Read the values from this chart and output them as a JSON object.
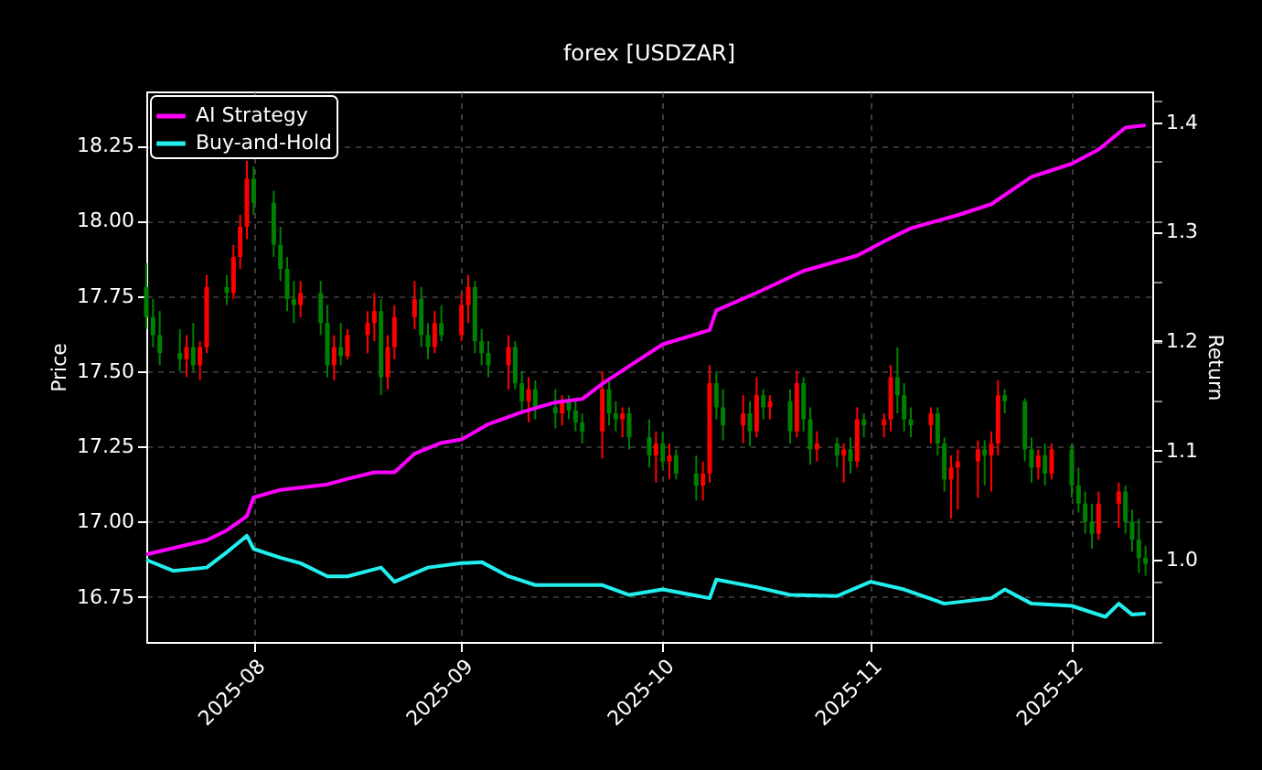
{
  "chart_data": {
    "type": "candlestick",
    "title": "forex [USDZAR]",
    "ylabel": "Price",
    "y2label": "Return",
    "x": [
      "2025-07-16",
      "2025-07-17",
      "2025-07-18",
      "2025-07-21",
      "2025-07-22",
      "2025-07-23",
      "2025-07-24",
      "2025-07-25",
      "2025-07-28",
      "2025-07-29",
      "2025-07-30",
      "2025-07-31",
      "2025-08-01",
      "2025-08-04",
      "2025-08-05",
      "2025-08-06",
      "2025-08-07",
      "2025-08-08",
      "2025-08-11",
      "2025-08-12",
      "2025-08-13",
      "2025-08-14",
      "2025-08-15",
      "2025-08-18",
      "2025-08-19",
      "2025-08-20",
      "2025-08-21",
      "2025-08-22",
      "2025-08-25",
      "2025-08-26",
      "2025-08-27",
      "2025-08-28",
      "2025-08-29",
      "2025-09-01",
      "2025-09-02",
      "2025-09-03",
      "2025-09-04",
      "2025-09-05",
      "2025-09-08",
      "2025-09-09",
      "2025-09-10",
      "2025-09-11",
      "2025-09-12",
      "2025-09-15",
      "2025-09-16",
      "2025-09-17",
      "2025-09-18",
      "2025-09-19",
      "2025-09-22",
      "2025-09-23",
      "2025-09-24",
      "2025-09-25",
      "2025-09-26",
      "2025-09-29",
      "2025-09-30",
      "2025-10-01",
      "2025-10-02",
      "2025-10-03",
      "2025-10-06",
      "2025-10-07",
      "2025-10-08",
      "2025-10-09",
      "2025-10-10",
      "2025-10-13",
      "2025-10-14",
      "2025-10-15",
      "2025-10-16",
      "2025-10-17",
      "2025-10-20",
      "2025-10-21",
      "2025-10-22",
      "2025-10-23",
      "2025-10-24",
      "2025-10-27",
      "2025-10-28",
      "2025-10-29",
      "2025-10-30",
      "2025-10-31",
      "2025-11-03",
      "2025-11-04",
      "2025-11-05",
      "2025-11-06",
      "2025-11-07",
      "2025-11-10",
      "2025-11-11",
      "2025-11-12",
      "2025-11-13",
      "2025-11-14",
      "2025-11-17",
      "2025-11-18",
      "2025-11-19",
      "2025-11-20",
      "2025-11-21",
      "2025-11-24",
      "2025-11-25",
      "2025-11-26",
      "2025-11-27",
      "2025-11-28",
      "2025-12-01",
      "2025-12-02",
      "2025-12-03",
      "2025-12-04",
      "2025-12-05",
      "2025-12-08",
      "2025-12-09",
      "2025-12-10",
      "2025-12-11",
      "2025-12-12"
    ],
    "ohlc": [
      [
        17.78,
        17.86,
        17.64,
        17.68
      ],
      [
        17.68,
        17.74,
        17.58,
        17.62
      ],
      [
        17.62,
        17.7,
        17.52,
        17.56
      ],
      [
        17.56,
        17.64,
        17.5,
        17.54
      ],
      [
        17.54,
        17.62,
        17.48,
        17.58
      ],
      [
        17.58,
        17.66,
        17.5,
        17.52
      ],
      [
        17.52,
        17.6,
        17.47,
        17.58
      ],
      [
        17.58,
        17.82,
        17.56,
        17.78
      ],
      [
        17.78,
        17.82,
        17.72,
        17.76
      ],
      [
        17.76,
        17.92,
        17.74,
        17.88
      ],
      [
        17.88,
        18.02,
        17.84,
        17.98
      ],
      [
        17.98,
        18.2,
        17.94,
        18.14
      ],
      [
        18.14,
        18.18,
        18.02,
        18.06
      ],
      [
        18.06,
        18.1,
        17.88,
        17.92
      ],
      [
        17.92,
        17.98,
        17.8,
        17.84
      ],
      [
        17.84,
        17.88,
        17.7,
        17.74
      ],
      [
        17.74,
        17.8,
        17.66,
        17.72
      ],
      [
        17.72,
        17.8,
        17.68,
        17.76
      ],
      [
        17.76,
        17.8,
        17.62,
        17.66
      ],
      [
        17.66,
        17.72,
        17.48,
        17.52
      ],
      [
        17.52,
        17.62,
        17.47,
        17.58
      ],
      [
        17.58,
        17.66,
        17.52,
        17.55
      ],
      [
        17.55,
        17.64,
        17.54,
        17.62
      ],
      [
        17.62,
        17.7,
        17.56,
        17.66
      ],
      [
        17.66,
        17.76,
        17.6,
        17.7
      ],
      [
        17.7,
        17.74,
        17.42,
        17.48
      ],
      [
        17.48,
        17.62,
        17.44,
        17.58
      ],
      [
        17.58,
        17.72,
        17.54,
        17.68
      ],
      [
        17.68,
        17.8,
        17.64,
        17.74
      ],
      [
        17.74,
        17.78,
        17.58,
        17.62
      ],
      [
        17.62,
        17.66,
        17.54,
        17.58
      ],
      [
        17.58,
        17.7,
        17.56,
        17.66
      ],
      [
        17.66,
        17.72,
        17.6,
        17.62
      ],
      [
        17.62,
        17.76,
        17.6,
        17.72
      ],
      [
        17.72,
        17.82,
        17.66,
        17.78
      ],
      [
        17.78,
        17.8,
        17.56,
        17.6
      ],
      [
        17.6,
        17.64,
        17.52,
        17.56
      ],
      [
        17.56,
        17.6,
        17.48,
        17.52
      ],
      [
        17.52,
        17.62,
        17.44,
        17.58
      ],
      [
        17.58,
        17.6,
        17.44,
        17.46
      ],
      [
        17.46,
        17.5,
        17.36,
        17.4
      ],
      [
        17.4,
        17.48,
        17.33,
        17.44
      ],
      [
        17.44,
        17.47,
        17.34,
        17.38
      ],
      [
        17.38,
        17.44,
        17.31,
        17.36
      ],
      [
        17.36,
        17.42,
        17.32,
        17.4
      ],
      [
        17.4,
        17.42,
        17.34,
        17.37
      ],
      [
        17.37,
        17.4,
        17.3,
        17.33
      ],
      [
        17.33,
        17.36,
        17.26,
        17.3
      ],
      [
        17.3,
        17.5,
        17.21,
        17.44
      ],
      [
        17.44,
        17.48,
        17.32,
        17.36
      ],
      [
        17.36,
        17.4,
        17.3,
        17.34
      ],
      [
        17.34,
        17.38,
        17.28,
        17.36
      ],
      [
        17.36,
        17.38,
        17.24,
        17.28
      ],
      [
        17.28,
        17.34,
        17.18,
        17.22
      ],
      [
        17.22,
        17.3,
        17.13,
        17.26
      ],
      [
        17.26,
        17.3,
        17.18,
        17.2
      ],
      [
        17.2,
        17.26,
        17.14,
        17.22
      ],
      [
        17.22,
        17.24,
        17.14,
        17.16
      ],
      [
        17.16,
        17.22,
        17.07,
        17.12
      ],
      [
        17.12,
        17.2,
        17.07,
        17.16
      ],
      [
        17.16,
        17.52,
        17.13,
        17.46
      ],
      [
        17.46,
        17.5,
        17.34,
        17.38
      ],
      [
        17.38,
        17.44,
        17.27,
        17.32
      ],
      [
        17.32,
        17.42,
        17.26,
        17.36
      ],
      [
        17.36,
        17.4,
        17.25,
        17.3
      ],
      [
        17.3,
        17.48,
        17.28,
        17.42
      ],
      [
        17.42,
        17.44,
        17.34,
        17.38
      ],
      [
        17.38,
        17.42,
        17.34,
        17.4
      ],
      [
        17.4,
        17.44,
        17.26,
        17.3
      ],
      [
        17.3,
        17.5,
        17.28,
        17.46
      ],
      [
        17.46,
        17.48,
        17.3,
        17.34
      ],
      [
        17.34,
        17.38,
        17.19,
        17.24
      ],
      [
        17.24,
        17.3,
        17.2,
        17.26
      ],
      [
        17.26,
        17.28,
        17.18,
        17.22
      ],
      [
        17.22,
        17.26,
        17.13,
        17.24
      ],
      [
        17.24,
        17.28,
        17.16,
        17.2
      ],
      [
        17.2,
        17.38,
        17.18,
        17.34
      ],
      [
        17.34,
        17.36,
        17.28,
        17.32
      ],
      [
        17.32,
        17.36,
        17.28,
        17.34
      ],
      [
        17.34,
        17.52,
        17.3,
        17.48
      ],
      [
        17.48,
        17.58,
        17.36,
        17.42
      ],
      [
        17.42,
        17.46,
        17.3,
        17.34
      ],
      [
        17.34,
        17.38,
        17.28,
        17.32
      ],
      [
        17.32,
        17.38,
        17.26,
        17.36
      ],
      [
        17.36,
        17.38,
        17.22,
        17.26
      ],
      [
        17.26,
        17.28,
        17.1,
        17.14
      ],
      [
        17.14,
        17.22,
        17.01,
        17.18
      ],
      [
        17.18,
        17.24,
        17.04,
        17.2
      ],
      [
        17.2,
        17.27,
        17.08,
        17.24
      ],
      [
        17.24,
        17.27,
        17.12,
        17.22
      ],
      [
        17.22,
        17.3,
        17.1,
        17.26
      ],
      [
        17.26,
        17.47,
        17.22,
        17.42
      ],
      [
        17.42,
        17.44,
        17.36,
        17.4
      ],
      [
        17.4,
        17.41,
        17.2,
        17.24
      ],
      [
        17.24,
        17.28,
        17.13,
        17.18
      ],
      [
        17.18,
        17.24,
        17.14,
        17.22
      ],
      [
        17.22,
        17.26,
        17.12,
        17.16
      ],
      [
        17.16,
        17.26,
        17.14,
        17.24
      ],
      [
        17.24,
        17.26,
        17.08,
        17.12
      ],
      [
        17.12,
        17.18,
        17.03,
        17.06
      ],
      [
        17.06,
        17.1,
        16.96,
        17.0
      ],
      [
        17.0,
        17.06,
        16.91,
        16.96
      ],
      [
        16.96,
        17.1,
        16.94,
        17.06
      ],
      [
        17.06,
        17.13,
        16.98,
        17.1
      ],
      [
        17.1,
        17.12,
        16.96,
        17.0
      ],
      [
        17.0,
        17.04,
        16.9,
        16.94
      ],
      [
        16.94,
        17.01,
        16.83,
        16.88
      ],
      [
        16.88,
        16.92,
        16.82,
        16.86
      ]
    ],
    "colors": [
      "#008000",
      "#008000",
      "#008000",
      "#008000",
      "#ff0000",
      "#008000",
      "#ff0000",
      "#ff0000",
      "#008000",
      "#ff0000",
      "#ff0000",
      "#ff0000",
      "#008000",
      "#008000",
      "#008000",
      "#008000",
      "#008000",
      "#ff0000",
      "#008000",
      "#008000",
      "#ff0000",
      "#008000",
      "#ff0000",
      "#ff0000",
      "#ff0000",
      "#008000",
      "#ff0000",
      "#ff0000",
      "#ff0000",
      "#008000",
      "#008000",
      "#ff0000",
      "#008000",
      "#ff0000",
      "#ff0000",
      "#008000",
      "#008000",
      "#008000",
      "#ff0000",
      "#008000",
      "#008000",
      "#ff0000",
      "#008000",
      "#008000",
      "#ff0000",
      "#008000",
      "#008000",
      "#008000",
      "#ff0000",
      "#008000",
      "#008000",
      "#ff0000",
      "#008000",
      "#008000",
      "#ff0000",
      "#008000",
      "#ff0000",
      "#008000",
      "#008000",
      "#ff0000",
      "#ff0000",
      "#008000",
      "#008000",
      "#ff0000",
      "#008000",
      "#ff0000",
      "#008000",
      "#ff0000",
      "#008000",
      "#ff0000",
      "#008000",
      "#008000",
      "#ff0000",
      "#008000",
      "#ff0000",
      "#008000",
      "#ff0000",
      "#008000",
      "#ff0000",
      "#ff0000",
      "#008000",
      "#008000",
      "#008000",
      "#ff0000",
      "#008000",
      "#008000",
      "#ff0000",
      "#ff0000",
      "#ff0000",
      "#008000",
      "#ff0000",
      "#ff0000",
      "#008000",
      "#008000",
      "#008000",
      "#ff0000",
      "#008000",
      "#ff0000",
      "#008000",
      "#008000",
      "#008000",
      "#008000",
      "#ff0000",
      "#ff0000",
      "#008000",
      "#008000",
      "#008000",
      "#008000"
    ],
    "series": [
      {
        "name": "AI Strategy",
        "type": "line",
        "axis": "y2",
        "color": "#ff00ff",
        "x": [
          "2025-07-16",
          "2025-07-25",
          "2025-07-28",
          "2025-07-31",
          "2025-08-01",
          "2025-08-05",
          "2025-08-12",
          "2025-08-15",
          "2025-08-19",
          "2025-08-22",
          "2025-08-25",
          "2025-08-29",
          "2025-09-01",
          "2025-09-05",
          "2025-09-10",
          "2025-09-15",
          "2025-09-19",
          "2025-09-22",
          "2025-09-26",
          "2025-10-01",
          "2025-10-08",
          "2025-10-09",
          "2025-10-15",
          "2025-10-22",
          "2025-10-30",
          "2025-11-03",
          "2025-11-07",
          "2025-11-14",
          "2025-11-19",
          "2025-11-25",
          "2025-12-01",
          "2025-12-05",
          "2025-12-09",
          "2025-12-12"
        ],
        "values": [
          1.005,
          1.018,
          1.027,
          1.04,
          1.057,
          1.064,
          1.069,
          1.074,
          1.08,
          1.08,
          1.097,
          1.107,
          1.11,
          1.124,
          1.135,
          1.144,
          1.147,
          1.161,
          1.177,
          1.197,
          1.21,
          1.228,
          1.244,
          1.264,
          1.278,
          1.291,
          1.303,
          1.315,
          1.325,
          1.35,
          1.362,
          1.375,
          1.395,
          1.397
        ]
      },
      {
        "name": "Buy-and-Hold",
        "type": "line",
        "axis": "y2",
        "color": "#22eeee",
        "x": [
          "2025-07-16",
          "2025-07-20",
          "2025-07-25",
          "2025-07-28",
          "2025-07-31",
          "2025-08-01",
          "2025-08-05",
          "2025-08-08",
          "2025-08-12",
          "2025-08-15",
          "2025-08-20",
          "2025-08-22",
          "2025-08-27",
          "2025-09-01",
          "2025-09-04",
          "2025-09-08",
          "2025-09-12",
          "2025-09-22",
          "2025-09-26",
          "2025-10-01",
          "2025-10-08",
          "2025-10-09",
          "2025-10-15",
          "2025-10-20",
          "2025-10-27",
          "2025-11-01",
          "2025-11-06",
          "2025-11-12",
          "2025-11-19",
          "2025-11-21",
          "2025-11-25",
          "2025-12-01",
          "2025-12-06",
          "2025-12-08",
          "2025-12-10",
          "2025-12-12"
        ],
        "values": [
          1.0,
          0.99,
          0.993,
          1.007,
          1.022,
          1.01,
          1.002,
          0.997,
          0.985,
          0.985,
          0.993,
          0.98,
          0.993,
          0.997,
          0.998,
          0.985,
          0.977,
          0.977,
          0.968,
          0.973,
          0.965,
          0.982,
          0.975,
          0.968,
          0.967,
          0.98,
          0.973,
          0.96,
          0.965,
          0.973,
          0.96,
          0.958,
          0.948,
          0.96,
          0.95,
          0.951
        ]
      }
    ],
    "xlim": [
      "2025-07-16",
      "2025-12-13"
    ],
    "xticks": [
      {
        "value": "2025-08-01",
        "label": "2025-08"
      },
      {
        "value": "2025-09-01",
        "label": "2025-09"
      },
      {
        "value": "2025-10-01",
        "label": "2025-10"
      },
      {
        "value": "2025-11-01",
        "label": "2025-11"
      },
      {
        "value": "2025-12-01",
        "label": "2025-12"
      }
    ],
    "ylim": [
      16.6,
      18.43
    ],
    "yticks": [
      16.75,
      {
        "value": 17,
        "label": "17.00"
      },
      17.25,
      {
        "value": 17.5,
        "label": "17.50"
      },
      17.75,
      {
        "value": 18,
        "label": "18.00"
      },
      18.25
    ],
    "y2lim": [
      0.925,
      1.428
    ],
    "y2ticks": [
      {
        "value": 1,
        "label": "1.0"
      },
      1.1,
      1.2,
      1.3,
      1.4
    ],
    "grid": true,
    "legend": "top left",
    "line_style": "solid",
    "marker": "none"
  }
}
